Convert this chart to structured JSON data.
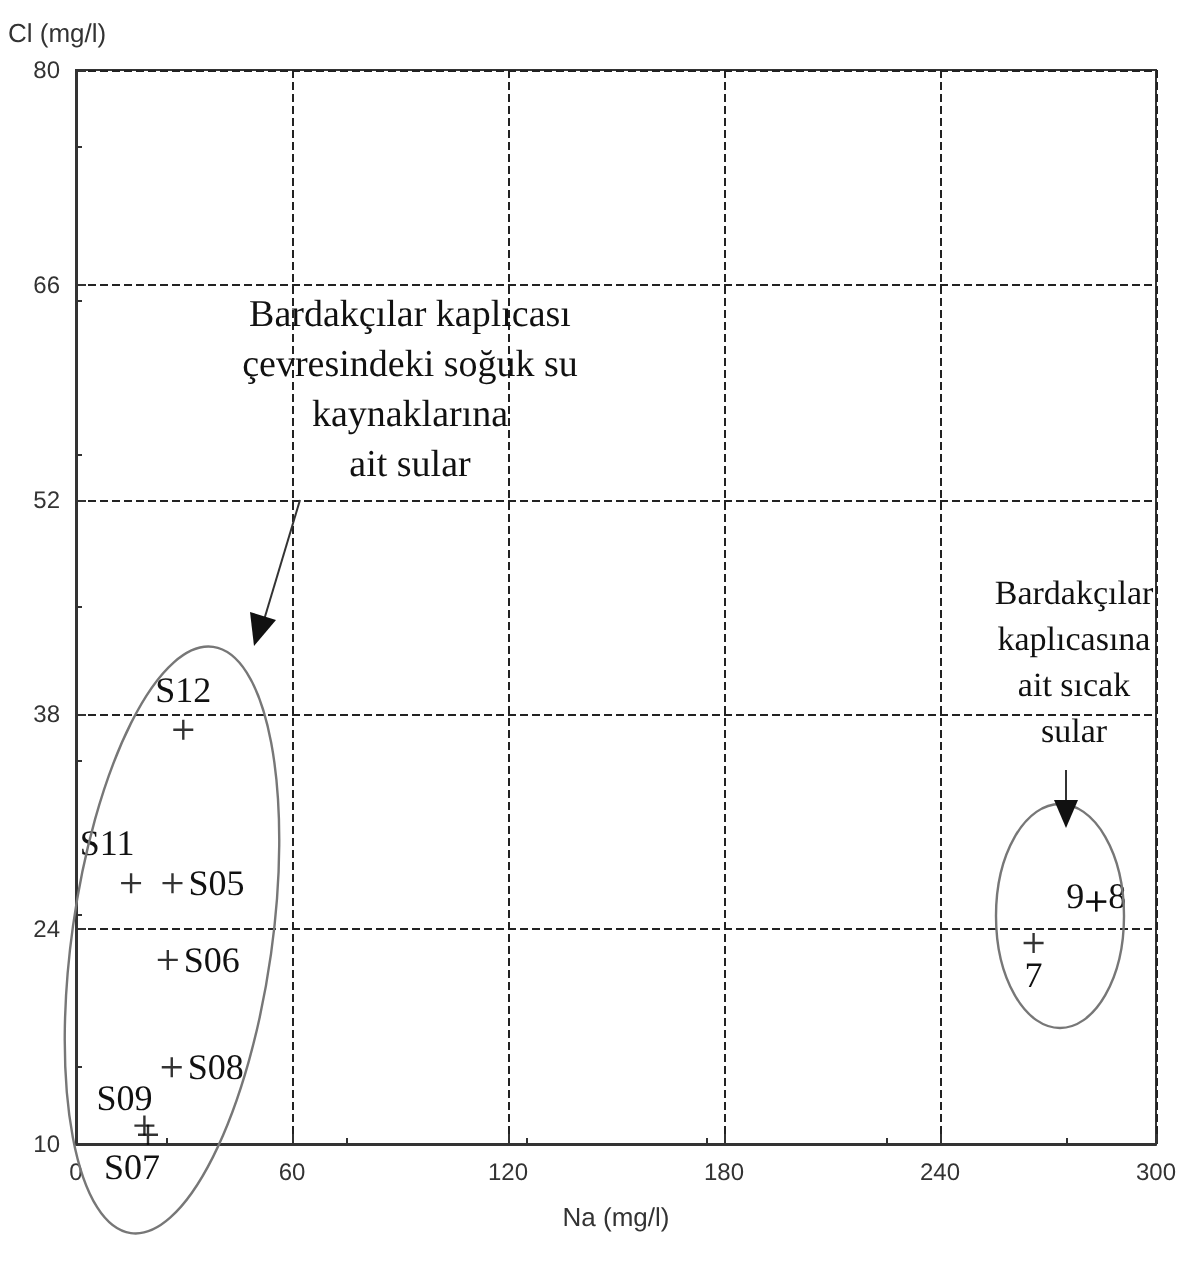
{
  "chart_data": {
    "type": "scatter",
    "xlabel": "Na (mg/l)",
    "ylabel": "Cl (mg/l)",
    "x": [
      29.8,
      15.3,
      26.8,
      25.5,
      26.6,
      19,
      20,
      283.4,
      283.4,
      266
    ],
    "values": [
      37,
      27,
      27,
      22,
      15,
      11.2,
      10.6,
      25.8,
      25.8,
      23.1
    ],
    "color": "#000000",
    "marker": "cross",
    "xlim": [
      0,
      300
    ],
    "xticks": [
      0,
      60,
      120,
      180,
      240,
      300
    ],
    "ylim": [
      10,
      80
    ],
    "yticks": [
      10,
      24,
      38,
      52,
      66,
      80
    ],
    "grid": true,
    "annotations": [
      {
        "text": "S12",
        "x": 29.8,
        "y": 37
      },
      {
        "text": "S11",
        "x": 15.3,
        "y": 27
      },
      {
        "text": "S05",
        "x": 26.8,
        "y": 27
      },
      {
        "text": "S06",
        "x": 25.5,
        "y": 22
      },
      {
        "text": "S08",
        "x": 26.6,
        "y": 15
      },
      {
        "text": "S09",
        "x": 19,
        "y": 11.2
      },
      {
        "text": "S07",
        "x": 20,
        "y": 10.6
      },
      {
        "text": "9",
        "x": 283.4,
        "y": 25.8
      },
      {
        "text": "8",
        "x": 283.4,
        "y": 25.8
      },
      {
        "text": "7",
        "x": 266,
        "y": 23.1
      },
      "Bardakçılar kaplıcası\nçevresindeki soğuk su\nkaynaklarına\nait sular",
      "Bardakçılar\nkaplıcasına\nait sıcak\nsular"
    ]
  }
}
